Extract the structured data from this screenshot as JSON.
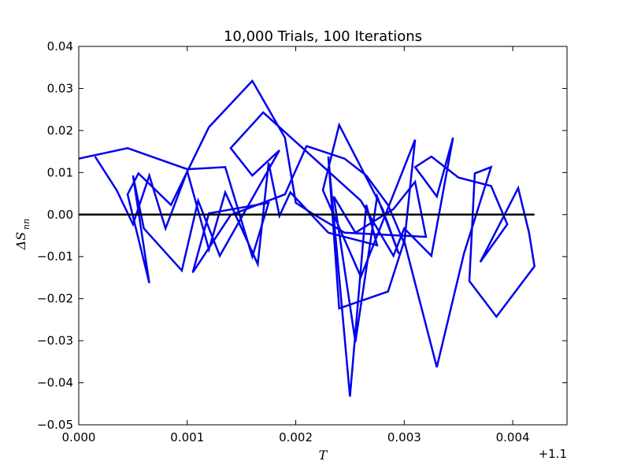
{
  "chart_data": {
    "type": "line",
    "title": "10,000 Trials, 100 Iterations",
    "xlabel": "T",
    "ylabel": "ΔS",
    "ylabel_subscript": "nn",
    "x_offset_label": "+1.1",
    "x_offset": 1.1,
    "xlim": [
      0.0,
      0.0045
    ],
    "ylim": [
      -0.05,
      0.04
    ],
    "x_ticks": [
      "0.000",
      "0.001",
      "0.002",
      "0.003",
      "0.004"
    ],
    "x_tick_values": [
      0.0,
      0.001,
      0.002,
      0.003,
      0.004
    ],
    "y_ticks": [
      "0.04",
      "0.03",
      "0.02",
      "0.01",
      "0.00",
      "−0.01",
      "−0.02",
      "−0.03",
      "−0.04",
      "−0.05"
    ],
    "y_tick_values": [
      0.04,
      0.03,
      0.02,
      0.01,
      0.0,
      -0.01,
      -0.02,
      -0.03,
      -0.04,
      -0.05
    ],
    "grid": false,
    "legend": "none",
    "series": [
      {
        "color": "#0000ee",
        "x": [
          0.0,
          0.00045,
          0.001,
          0.00135,
          0.0016,
          0.00175,
          0.0012,
          0.00105,
          0.0014,
          0.0019,
          0.0021,
          0.00245,
          0.00265,
          0.00285,
          0.003,
          0.0031,
          0.0026,
          0.00225,
          0.0024,
          0.0028,
          0.00295,
          0.00275,
          0.00255,
          0.00235,
          0.00255,
          0.0029,
          0.0031,
          0.0032,
          0.00245,
          0.00215,
          0.002,
          0.0019,
          0.0016,
          0.0012,
          0.00085,
          0.00055,
          0.00045,
          0.00065,
          0.0005,
          0.0006,
          0.00095,
          0.0011,
          0.0013,
          0.00185,
          0.0016,
          0.0014,
          0.0017,
          0.0026,
          0.0029,
          0.003,
          0.00325,
          0.00345,
          0.0033,
          0.0031,
          0.00325,
          0.0035,
          0.0038,
          0.00395,
          0.0037,
          0.00405,
          0.00415,
          0.0042,
          0.00385,
          0.0036,
          0.00365,
          0.0038,
          0.00355,
          0.0033,
          0.003,
          0.00285,
          0.0024,
          0.0023,
          0.0025,
          0.00265,
          0.00275,
          0.0023,
          0.00195,
          0.00185,
          0.00175,
          0.00165,
          0.00135,
          0.0012,
          0.001,
          0.0008,
          0.00065,
          0.0005,
          0.00035,
          0.00015
        ],
        "y": [
          0.0133,
          0.0158,
          0.0108,
          0.0113,
          -0.01,
          0.0028,
          0.0003,
          -0.0138,
          -0.0001,
          0.0048,
          0.0163,
          0.0133,
          0.0093,
          0.0023,
          -0.0068,
          0.0178,
          -0.0148,
          0.0058,
          0.0213,
          0.0013,
          -0.0093,
          0.0043,
          -0.0303,
          0.0043,
          -0.0043,
          0.0013,
          0.0078,
          -0.0053,
          -0.0043,
          0.0003,
          0.0028,
          0.0183,
          0.0318,
          0.0208,
          0.0023,
          0.0098,
          0.0048,
          -0.0163,
          0.0093,
          -0.0033,
          -0.0133,
          0.0033,
          -0.0098,
          0.0153,
          0.0093,
          0.0158,
          0.0243,
          0.0033,
          -0.0098,
          -0.0033,
          -0.0098,
          0.0183,
          0.0043,
          0.0113,
          0.0138,
          0.0088,
          0.0068,
          -0.0023,
          -0.0113,
          0.0063,
          -0.0043,
          -0.0123,
          -0.0243,
          -0.0158,
          0.0098,
          0.0113,
          -0.0093,
          -0.0363,
          -0.0063,
          -0.0183,
          -0.0223,
          0.0138,
          -0.0433,
          0.0023,
          -0.0073,
          -0.0043,
          0.0053,
          -0.0003,
          0.0123,
          -0.0118,
          0.0053,
          -0.0083,
          0.0103,
          -0.0033,
          0.0093,
          -0.0023,
          0.0058,
          0.0138
        ]
      }
    ],
    "reference_line": {
      "y": 0.0,
      "x_start": 0.0,
      "x_end": 0.0042,
      "color": "#000000"
    }
  }
}
